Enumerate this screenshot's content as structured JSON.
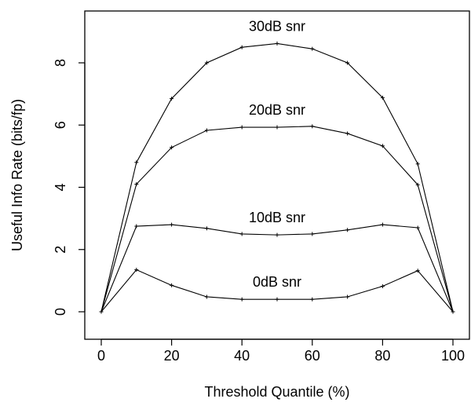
{
  "chart_data": {
    "type": "line",
    "title": "",
    "xlabel": "Threshold Quantile (%)",
    "ylabel": "Useful Info Rate (bits/fp)",
    "xlim": [
      0,
      100
    ],
    "ylim": [
      -0.3,
      9.6
    ],
    "xticks": [
      0,
      20,
      40,
      60,
      80,
      100
    ],
    "yticks": [
      0,
      2,
      4,
      6,
      8
    ],
    "x": [
      0,
      10,
      20,
      30,
      40,
      50,
      60,
      70,
      80,
      90,
      100
    ],
    "series": [
      {
        "name": "30dB snr",
        "values": [
          0,
          4.8,
          6.85,
          8.0,
          8.5,
          8.62,
          8.45,
          8.0,
          6.88,
          4.75,
          0
        ]
      },
      {
        "name": "20dB snr",
        "values": [
          0,
          4.1,
          5.28,
          5.83,
          5.93,
          5.93,
          5.96,
          5.73,
          5.33,
          4.08,
          0
        ]
      },
      {
        "name": "10dB snr",
        "values": [
          0,
          2.75,
          2.8,
          2.68,
          2.5,
          2.47,
          2.5,
          2.63,
          2.8,
          2.7,
          0
        ]
      },
      {
        "name": "0dB snr",
        "values": [
          0,
          1.35,
          0.85,
          0.48,
          0.4,
          0.4,
          0.4,
          0.48,
          0.82,
          1.32,
          0
        ]
      }
    ],
    "grid": false,
    "legend": "none"
  }
}
